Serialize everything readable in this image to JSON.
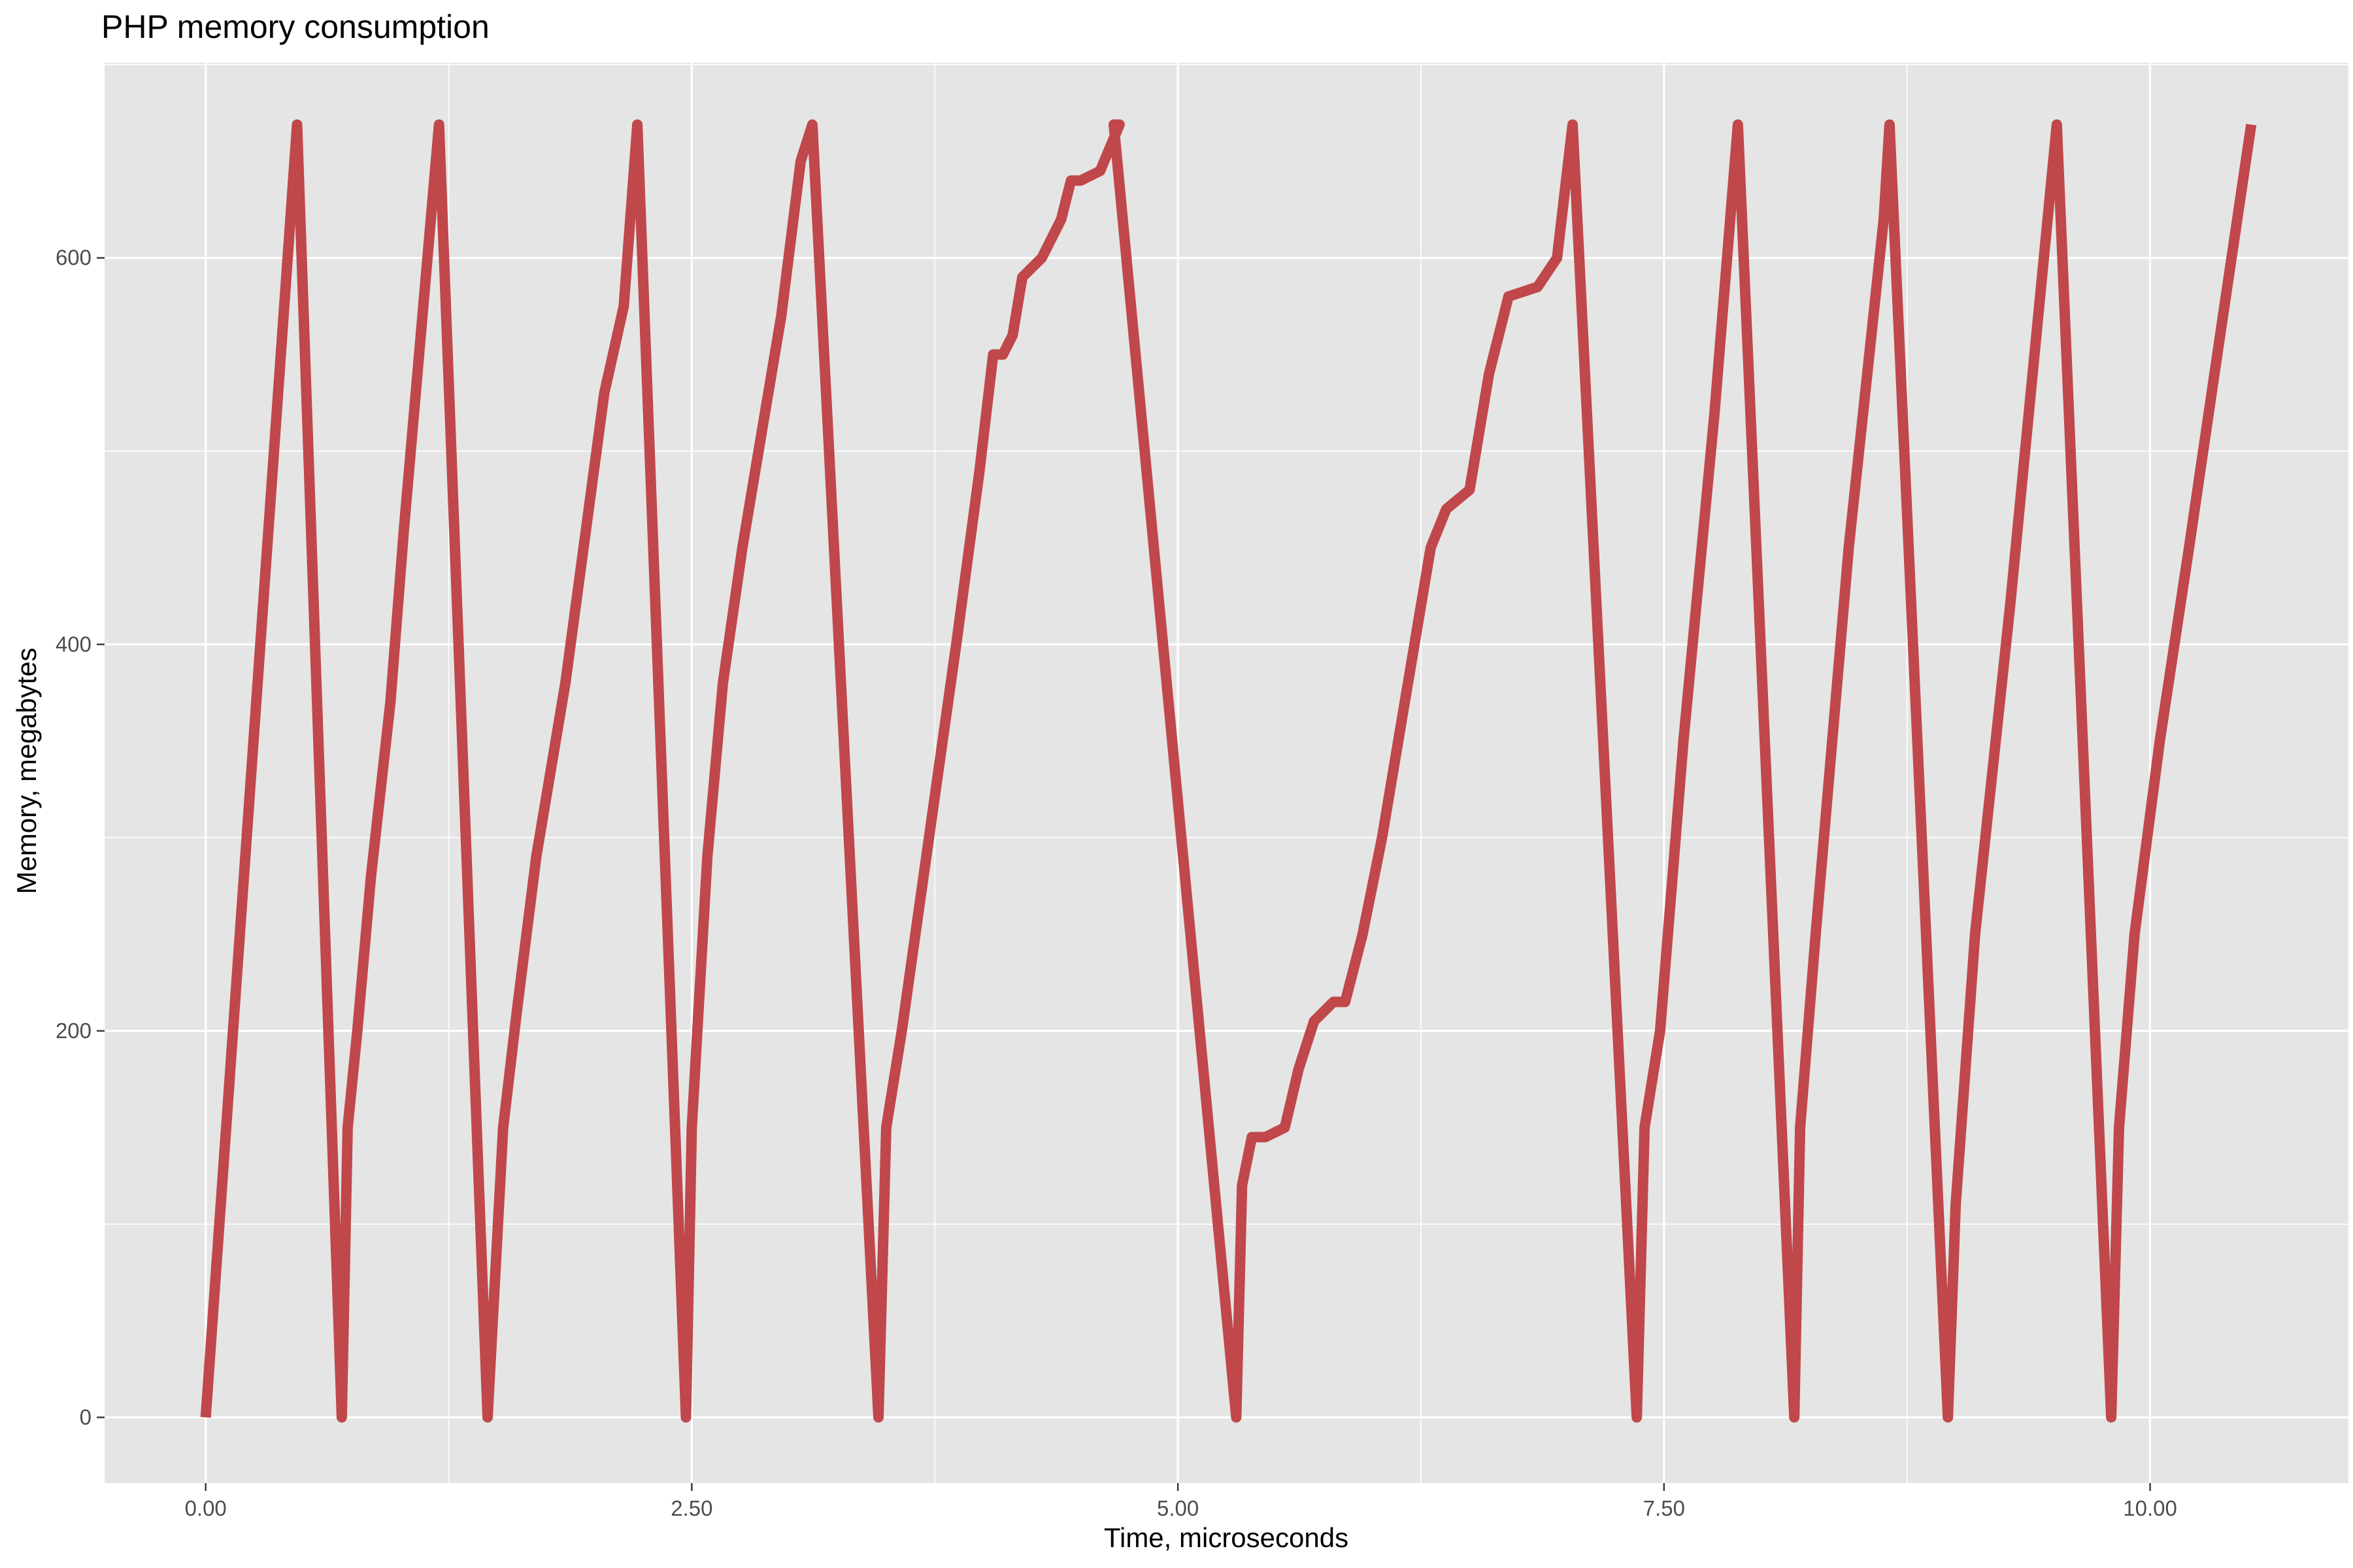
{
  "chart_data": {
    "type": "line",
    "title": "PHP memory consumption",
    "xlabel": "Time, microseconds",
    "ylabel": "Memory, megabytes",
    "xlim": [
      -0.52,
      11.02
    ],
    "ylim": [
      -34,
      701
    ],
    "x_ticks": [
      0,
      2.5,
      5,
      7.5,
      10
    ],
    "x_tick_labels": [
      "0.00",
      "2.50",
      "5.00",
      "7.50",
      "10.00"
    ],
    "y_ticks": [
      0,
      200,
      400,
      600
    ],
    "y_tick_labels": [
      "0",
      "200",
      "400",
      "600"
    ],
    "grid": true,
    "legend": "none",
    "series": [
      {
        "color": "#c0474a",
        "x": [
          0.0,
          0.47,
          0.7,
          0.73,
          0.78,
          0.85,
          0.95,
          1.02,
          1.2,
          1.45,
          1.53,
          1.6,
          1.7,
          1.85,
          1.95,
          2.05,
          2.15,
          2.22,
          2.47,
          2.5,
          2.58,
          2.66,
          2.76,
          2.86,
          2.96,
          3.06,
          3.12,
          3.46,
          3.5,
          3.58,
          3.72,
          3.86,
          3.98,
          4.05,
          4.1,
          4.15,
          4.2,
          4.3,
          4.4,
          4.45,
          4.5,
          4.6,
          4.7,
          4.67,
          5.3,
          5.33,
          5.38,
          5.45,
          5.55,
          5.62,
          5.7,
          5.8,
          5.86,
          5.95,
          6.05,
          6.15,
          6.3,
          6.38,
          6.5,
          6.6,
          6.7,
          6.85,
          6.95,
          7.03,
          7.36,
          7.4,
          7.48,
          7.6,
          7.76,
          7.88,
          8.17,
          8.2,
          8.28,
          8.45,
          8.63,
          8.66,
          8.96,
          9.0,
          9.1,
          9.28,
          9.52,
          9.8,
          9.84,
          9.92,
          10.05,
          10.2,
          10.36,
          10.52
        ],
        "y": [
          0,
          669,
          0,
          150,
          200,
          280,
          370,
          460,
          669,
          0,
          150,
          210,
          290,
          380,
          455,
          530,
          575,
          669,
          0,
          150,
          290,
          380,
          450,
          510,
          570,
          650,
          669,
          0,
          150,
          200,
          300,
          400,
          490,
          550,
          550,
          560,
          590,
          600,
          620,
          640,
          640,
          645,
          669,
          669,
          0,
          120,
          145,
          145,
          150,
          180,
          205,
          215,
          215,
          250,
          300,
          360,
          450,
          470,
          480,
          540,
          580,
          585,
          600,
          669,
          0,
          150,
          200,
          350,
          520,
          669,
          0,
          150,
          250,
          450,
          620,
          669,
          0,
          110,
          250,
          420,
          669,
          0,
          150,
          250,
          350,
          450,
          560,
          669
        ]
      }
    ]
  }
}
